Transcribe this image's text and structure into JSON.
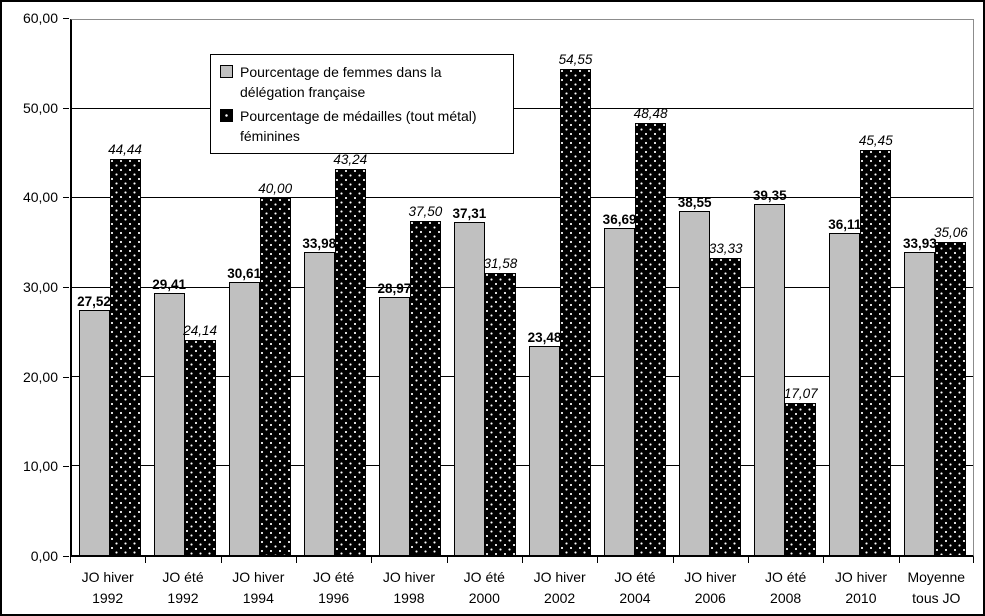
{
  "chart_data": {
    "type": "bar",
    "title": "",
    "xlabel": "",
    "ylabel": "",
    "ylim": [
      0,
      60
    ],
    "ytick_step": 10,
    "ytick_labels": [
      "0,00",
      "10,00",
      "20,00",
      "30,00",
      "40,00",
      "50,00",
      "60,00"
    ],
    "ygrid_values": [
      10,
      20,
      30,
      40,
      50
    ],
    "grid": true,
    "legend_position": "top-left-inside",
    "categories": [
      "JO hiver\n1992",
      "JO été\n1992",
      "JO hiver\n1994",
      "JO été\n1996",
      "JO hiver\n1998",
      "JO été\n2000",
      "JO hiver\n2002",
      "JO été\n2004",
      "JO hiver\n2006",
      "JO été\n2008",
      "JO hiver\n2010",
      "Moyenne\ntous JO"
    ],
    "series": [
      {
        "name": "Pourcentage de femmes dans la délégation française",
        "color": "#c0c0c0",
        "pattern": "solid",
        "label_style": "bold",
        "values": [
          27.52,
          29.41,
          30.61,
          33.98,
          28.97,
          37.31,
          23.48,
          36.69,
          38.55,
          39.35,
          36.11,
          33.93
        ],
        "labels": [
          "27,52",
          "29,41",
          "30,61",
          "33,98",
          "28,97",
          "37,31",
          "23,48",
          "36,69",
          "38,55",
          "39,35",
          "36,11",
          "33,93"
        ]
      },
      {
        "name": "Pourcentage de médailles (tout métal) féminines",
        "color": "#000000",
        "pattern": "white-dots",
        "label_style": "italic",
        "values": [
          44.44,
          24.14,
          40.0,
          43.24,
          37.5,
          31.58,
          54.55,
          48.48,
          33.33,
          17.07,
          45.45,
          35.06
        ],
        "labels": [
          "44,44",
          "24,14",
          "40,00",
          "43,24",
          "37,50",
          "31,58",
          "54,55",
          "48,48",
          "33,33",
          "17,07",
          "45,45",
          "35,06"
        ]
      }
    ],
    "colors": {
      "background": "#ffffff",
      "frame_border": "#000000",
      "gridline": "#000000",
      "plot_outer_border": "#8c8c8c",
      "bar_fill_series1": "#c0c0c0",
      "bar_fill_series2": "#000000"
    }
  }
}
